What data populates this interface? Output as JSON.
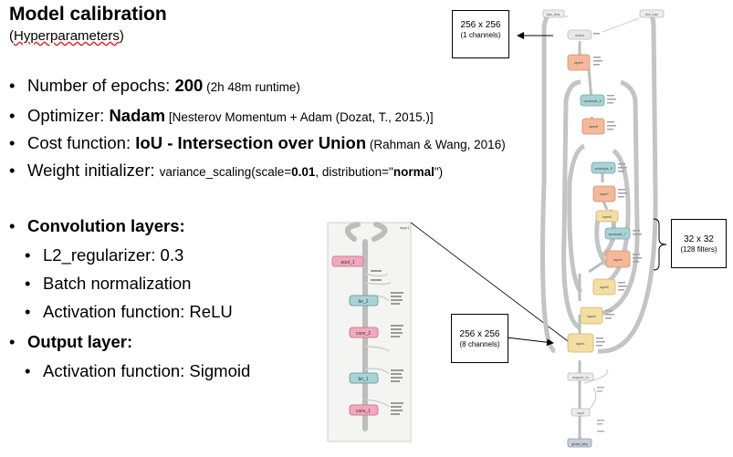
{
  "slide": {
    "title": "Model calibration",
    "subtitle_prefix": "(",
    "subtitle_word": "Hyperparameters",
    "subtitle_suffix": ")"
  },
  "hyperparameters": {
    "epochs": {
      "label": "Number of epochs: ",
      "value": "200",
      "note": " (2h 48m runtime)"
    },
    "optimizer": {
      "label": "Optimizer: ",
      "value": "Nadam",
      "note": " [Nesterov Momentum + Adam (Dozat, T., 2015.)]"
    },
    "cost": {
      "label": "Cost function: ",
      "value": "IoU - Intersection over Union",
      "note": " (Rahman & Wang, 2016)"
    },
    "init": {
      "label": "Weight initializer: ",
      "p1": "variance_scaling(scale=",
      "scale": "0.01",
      "p2": ", distribution=\"",
      "dist": "normal",
      "p3": "\")"
    }
  },
  "conv_layers": {
    "heading": "Convolution layers:",
    "items": [
      "L2_regularizer: 0.3",
      "Batch normalization",
      "Activation function: ReLU"
    ]
  },
  "output_layer": {
    "heading": "Output layer:",
    "items": [
      "Activation function: Sigmoid"
    ]
  },
  "annotations": {
    "output_box": {
      "line1": "256 x 256",
      "line2": "(1 channels)"
    },
    "mid_box": {
      "line1": "32 x 32",
      "line2": "(128 filters)"
    },
    "input_box": {
      "line1": "256 x 256",
      "line2": "(8 channels)"
    }
  },
  "graph_zoom": {
    "nodes": [
      "pool_1",
      "bn_2",
      "conv_2",
      "bn_1",
      "conv_1"
    ],
    "corner_label": "layer1"
  },
  "graph_full": {
    "top_nodes": [
      "loss_ions",
      "bce_loss"
    ],
    "output_node": "output",
    "nodes": [
      "layer9",
      "upsample_9",
      "layer8",
      "upsample_8",
      "layer7",
      "layer6",
      "upsample_7",
      "layer4",
      "layer5",
      "layer2",
      "layer1"
    ],
    "bottom_nodes": [
      "dropout_1x",
      "input",
      "global_step"
    ]
  },
  "colors": {
    "pink": "#f2a9bd",
    "teal": "#a9d3d4",
    "salmon": "#f4b99a",
    "yellow": "#f3dfa6",
    "edge": "#bdbdbd"
  }
}
